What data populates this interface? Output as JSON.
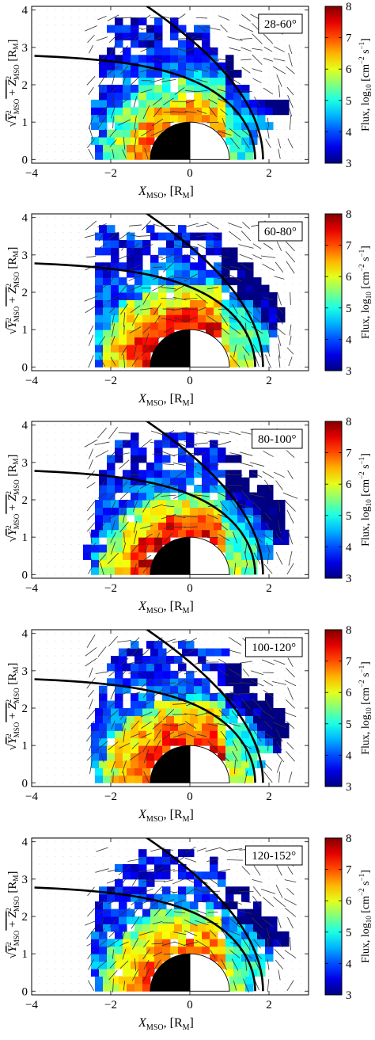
{
  "figure": {
    "xlabel_main": "X",
    "xlabel_sub": "MSO",
    "xlabel_unit": ", [R",
    "xlabel_unit_sub": "M",
    "xlabel_close": "]",
    "ylabel_y": "Y",
    "ylabel_z": "Z",
    "ylabel_sup": "2",
    "ylabel_sub": "MSO",
    "ylabel_plus": " + ",
    "ylabel_unit": " [R",
    "ylabel_unit_sub": "M",
    "ylabel_close": "]",
    "colorbar_label_prefix": "Flux, log",
    "colorbar_label_sub": "10",
    "colorbar_label_units": " [cm",
    "colorbar_label_exp1": "−2",
    "colorbar_label_s": " s",
    "colorbar_label_exp2": "−1",
    "colorbar_label_end": "]",
    "colorbar_ticks": [
      "3",
      "4",
      "5",
      "6",
      "7",
      "8"
    ],
    "colors": {
      "colormap": "jet",
      "boundary_line": "#000000",
      "planet_dayside": "#ffffff",
      "planet_nightside": "#000000",
      "vector_lines": "#333333",
      "grid_dots": "#c8c8c8"
    }
  },
  "chart_data": [
    {
      "type": "heatmap",
      "title": "28-60°",
      "xlim": [
        -4,
        3
      ],
      "ylim": [
        -0.1,
        4.1
      ],
      "xticks": [
        "−4",
        "−2",
        "0",
        "2"
      ],
      "yticks": [
        "0",
        "1",
        "2",
        "3",
        "4"
      ],
      "clim": [
        3,
        8
      ],
      "boundaries": [
        "magnetopause",
        "bow shock"
      ],
      "planet_radius": 1,
      "coverage": {
        "x_range": [
          -2.4,
          2.5
        ],
        "rows": [
          [
            -2.3,
            1.5
          ],
          [
            -2.4,
            1.7
          ],
          [
            -2.4,
            2.0
          ],
          [
            -2.4,
            2.4
          ],
          [
            -2.2,
            1.5
          ],
          [
            -2.2,
            1.3
          ],
          [
            -2.2,
            1.0
          ],
          [
            -2.0,
            0.6
          ],
          [
            -2.0,
            0.4
          ],
          [
            -1.8,
            -0.4
          ]
        ]
      },
      "flux_profile": {
        "inner_peak": 6.8,
        "mid_level": 5.0,
        "outer_level": 3.6
      }
    },
    {
      "type": "heatmap",
      "title": "60-80°",
      "xlim": [
        -4,
        3
      ],
      "ylim": [
        -0.1,
        4.1
      ],
      "xticks": [
        "−4",
        "−2",
        "0",
        "2"
      ],
      "yticks": [
        "0",
        "1",
        "2",
        "3",
        "4"
      ],
      "clim": [
        3,
        8
      ],
      "boundaries": [
        "magnetopause",
        "bow shock"
      ],
      "planet_radius": 1,
      "coverage": {
        "x_range": [
          -2.4,
          2.6
        ],
        "rows": [
          [
            -2.3,
            1.6
          ],
          [
            -2.3,
            1.9
          ],
          [
            -2.3,
            2.2
          ],
          [
            -2.3,
            2.4
          ],
          [
            -2.3,
            2.2
          ],
          [
            -2.3,
            1.9
          ],
          [
            -2.3,
            1.6
          ],
          [
            -2.3,
            1.2
          ],
          [
            -2.3,
            0.8
          ],
          [
            -2.2,
            0.0
          ]
        ]
      },
      "flux_profile": {
        "inner_peak": 7.4,
        "mid_level": 5.6,
        "outer_level": 3.7
      }
    },
    {
      "type": "heatmap",
      "title": "80-100°",
      "xlim": [
        -4,
        3
      ],
      "ylim": [
        -0.1,
        4.1
      ],
      "xticks": [
        "−4",
        "−2",
        "0",
        "2"
      ],
      "yticks": [
        "0",
        "1",
        "2",
        "3",
        "4"
      ],
      "clim": [
        3,
        8
      ],
      "boundaries": [
        "magnetopause",
        "bow shock"
      ],
      "planet_radius": 1,
      "coverage": {
        "x_range": [
          -2.6,
          2.6
        ],
        "rows": [
          [
            -2.4,
            1.6
          ],
          [
            -2.6,
            2.0
          ],
          [
            -2.4,
            2.4
          ],
          [
            -2.3,
            2.5
          ],
          [
            -2.3,
            2.4
          ],
          [
            -2.2,
            2.0
          ],
          [
            -2.2,
            1.6
          ],
          [
            -2.0,
            1.2
          ],
          [
            -1.8,
            0.9
          ],
          [
            -1.4,
            0.0
          ]
        ]
      },
      "flux_profile": {
        "inner_peak": 7.5,
        "mid_level": 5.4,
        "outer_level": 3.6
      }
    },
    {
      "type": "heatmap",
      "title": "100-120°",
      "xlim": [
        -4,
        3
      ],
      "ylim": [
        -0.1,
        4.1
      ],
      "xticks": [
        "−4",
        "−2",
        "0",
        "2"
      ],
      "yticks": [
        "0",
        "1",
        "2",
        "3",
        "4"
      ],
      "clim": [
        3,
        8
      ],
      "boundaries": [
        "magnetopause",
        "bow shock"
      ],
      "planet_radius": 1,
      "coverage": {
        "x_range": [
          -2.4,
          2.6
        ],
        "rows": [
          [
            -2.3,
            1.6
          ],
          [
            -2.4,
            1.9
          ],
          [
            -2.4,
            2.2
          ],
          [
            -2.4,
            2.5
          ],
          [
            -2.3,
            2.4
          ],
          [
            -2.2,
            2.0
          ],
          [
            -2.2,
            1.6
          ],
          [
            -2.0,
            1.2
          ],
          [
            -1.9,
            0.9
          ],
          [
            -1.6,
            0.2
          ]
        ]
      },
      "flux_profile": {
        "inner_peak": 7.2,
        "mid_level": 5.6,
        "outer_level": 3.7
      }
    },
    {
      "type": "heatmap",
      "title": "120-152°",
      "xlim": [
        -4,
        3
      ],
      "ylim": [
        -0.1,
        4.1
      ],
      "xticks": [
        "−4",
        "−2",
        "0",
        "2"
      ],
      "yticks": [
        "0",
        "1",
        "2",
        "3",
        "4"
      ],
      "clim": [
        3,
        8
      ],
      "boundaries": [
        "magnetopause",
        "bow shock"
      ],
      "planet_radius": 1,
      "coverage": {
        "x_range": [
          -2.4,
          2.5
        ],
        "rows": [
          [
            -2.3,
            1.5
          ],
          [
            -2.4,
            1.8
          ],
          [
            -2.4,
            2.1
          ],
          [
            -2.4,
            2.5
          ],
          [
            -2.3,
            2.2
          ],
          [
            -2.3,
            1.8
          ],
          [
            -2.2,
            1.5
          ],
          [
            -2.0,
            1.0
          ],
          [
            -1.8,
            0.6
          ],
          [
            -1.4,
            0.0
          ]
        ]
      },
      "flux_profile": {
        "inner_peak": 6.9,
        "mid_level": 5.3,
        "outer_level": 3.6
      }
    }
  ]
}
